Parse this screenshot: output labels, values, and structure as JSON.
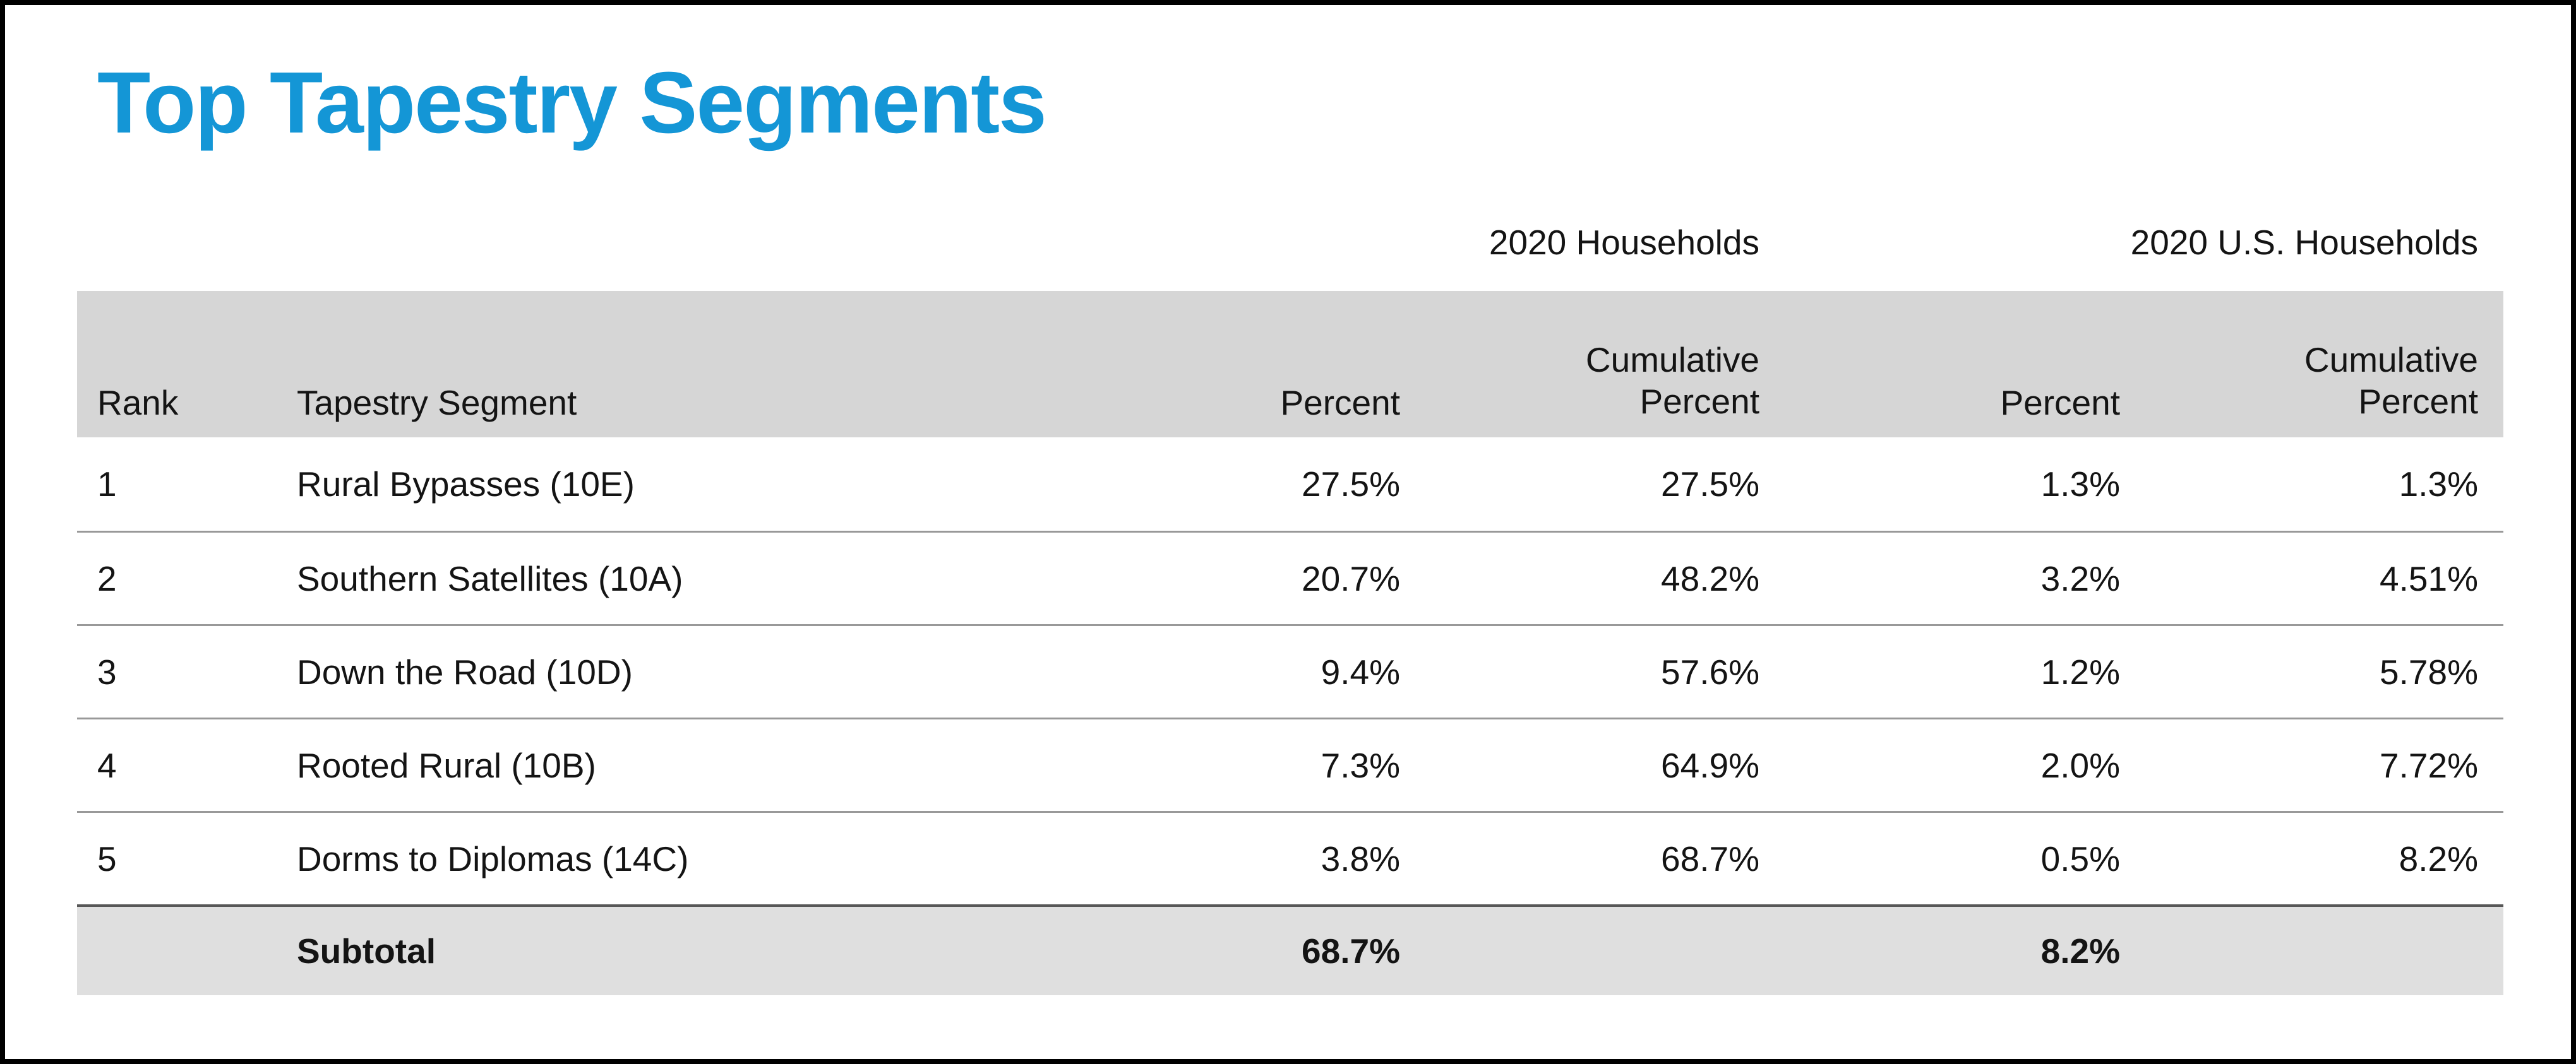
{
  "title": "Top Tapestry Segments",
  "colors": {
    "accent": "#1496d6",
    "border": "#000000",
    "header_band": "#d6d6d6",
    "subtotal_band": "#dfdfdf",
    "row_divider": "#999999",
    "subtotal_divider": "#575757"
  },
  "chart_data": {
    "type": "table",
    "title": "Top Tapestry Segments",
    "group_headers": [
      "2020 Households",
      "2020 U.S. Households"
    ],
    "col_headers": {
      "rank": "Rank",
      "segment": "Tapestry Segment",
      "percent": "Percent",
      "cumulative_line1": "Cumulative",
      "cumulative_line2": "Percent"
    },
    "rows": [
      {
        "rank": "1",
        "segment": "Rural Bypasses (10E)",
        "values": [
          "27.5%",
          "27.5%",
          "1.3%",
          "1.3%"
        ]
      },
      {
        "rank": "2",
        "segment": "Southern Satellites (10A)",
        "values": [
          "20.7%",
          "48.2%",
          "3.2%",
          "4.51%"
        ]
      },
      {
        "rank": "3",
        "segment": "Down the Road (10D)",
        "values": [
          "9.4%",
          "57.6%",
          "1.2%",
          "5.78%"
        ]
      },
      {
        "rank": "4",
        "segment": "Rooted Rural (10B)",
        "values": [
          "7.3%",
          "64.9%",
          "2.0%",
          "7.72%"
        ]
      },
      {
        "rank": "5",
        "segment": "Dorms to Diplomas (14C)",
        "values": [
          "3.8%",
          "68.7%",
          "0.5%",
          "8.2%"
        ]
      }
    ],
    "subtotal": {
      "label": "Subtotal",
      "values": [
        "68.7%",
        "8.2%"
      ]
    }
  }
}
